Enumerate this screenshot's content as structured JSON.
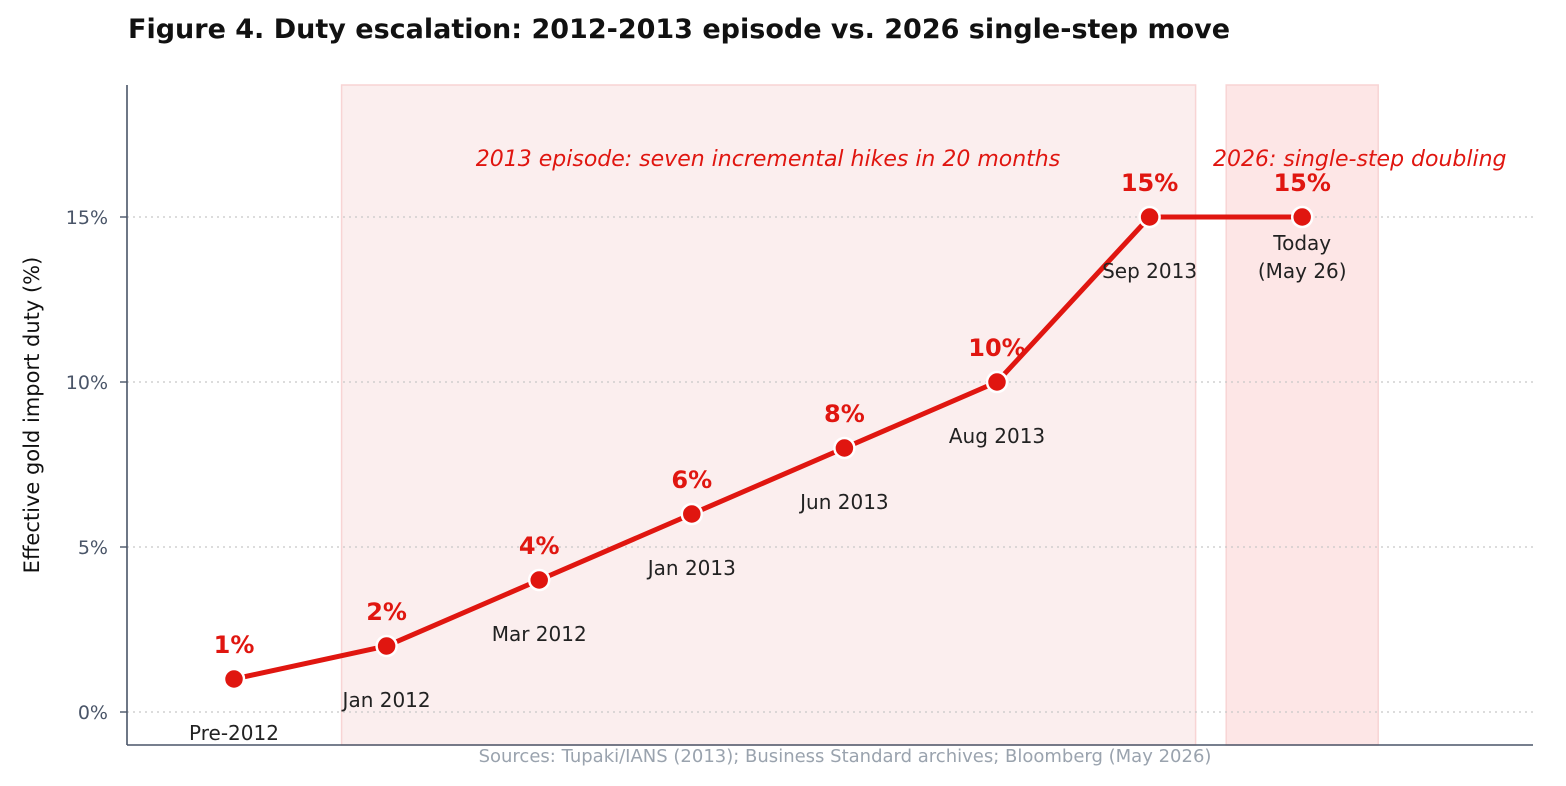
{
  "title": "Figure 4. Duty escalation: 2012-2013 episode vs. 2026 single-step move",
  "colors": {
    "line": "#e01610",
    "episode_band": "#fbeeee",
    "recent_band": "#fde6e6",
    "axis": "#4a5568",
    "grid": "#c8c8c8"
  },
  "chart_data": {
    "type": "line",
    "ylabel": "Effective gold import duty (%)",
    "ylim": [
      -1,
      19
    ],
    "yticks": [
      0,
      5,
      10,
      15
    ],
    "ytick_labels": [
      "0%",
      "5%",
      "10%",
      "15%"
    ],
    "grid": "horizontal dotted",
    "points": [
      {
        "date": "Pre-2012",
        "value": 1,
        "value_label": "1%"
      },
      {
        "date": "Jan 2012",
        "value": 2,
        "value_label": "2%"
      },
      {
        "date": "Mar 2012",
        "value": 4,
        "value_label": "4%"
      },
      {
        "date": "Jan 2013",
        "value": 6,
        "value_label": "6%"
      },
      {
        "date": "Jun 2013",
        "value": 8,
        "value_label": "8%"
      },
      {
        "date": "Aug 2013",
        "value": 10,
        "value_label": "10%"
      },
      {
        "date": "Sep 2013",
        "value": 15,
        "value_label": "15%"
      },
      {
        "date": "Today\n(May 26)",
        "value": 15,
        "value_label": "15%"
      }
    ],
    "shaded_regions": [
      {
        "from": "Jan 2012",
        "to": "Sep 2013",
        "label": "2013 episode: seven incremental hikes in 20 months"
      },
      {
        "from": "Today\n(May 26)",
        "to": "Today\n(May 26)",
        "label": "2026: single-step doubling"
      }
    ]
  },
  "source_note": "Sources: Tupaki/IANS (2013); Business Standard archives; Bloomberg (May 2026)"
}
